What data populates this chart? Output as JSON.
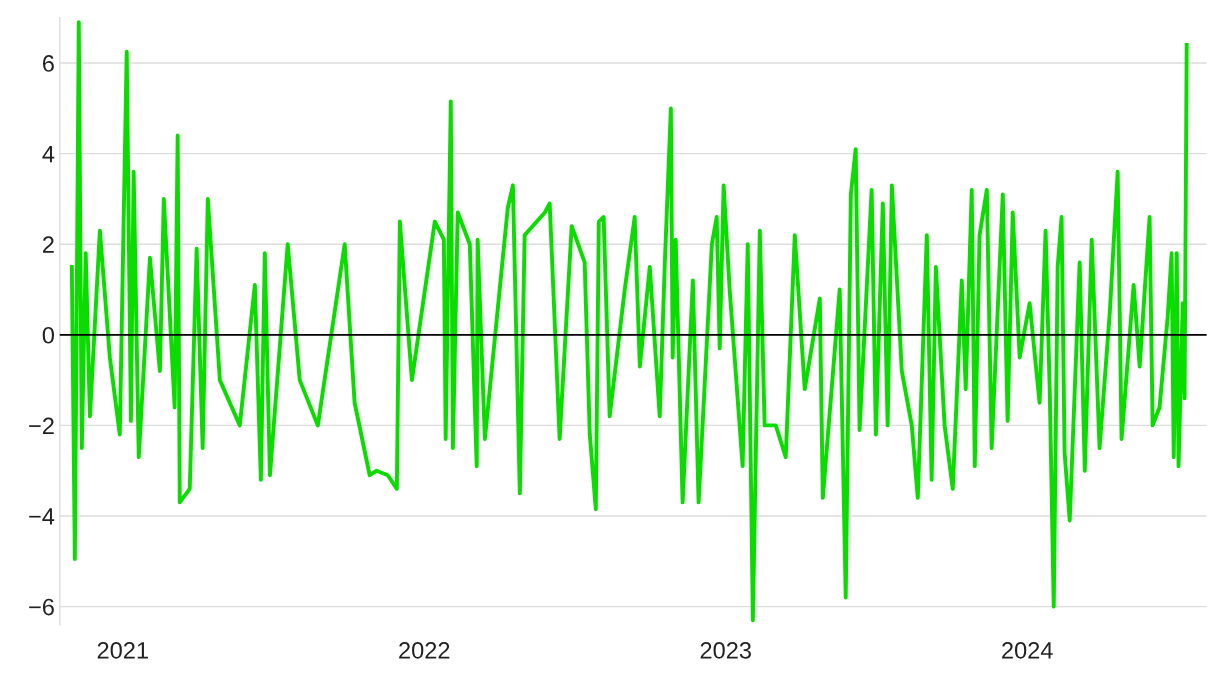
{
  "chart_data": {
    "type": "line",
    "x": [
      2020.831,
      2020.841,
      2020.854,
      2020.864,
      2020.877,
      2020.891,
      2020.924,
      2020.957,
      2020.99,
      2021.013,
      2021.027,
      2021.036,
      2021.053,
      2021.09,
      2021.123,
      2021.136,
      2021.172,
      2021.182,
      2021.189,
      2021.222,
      2021.245,
      2021.265,
      2021.282,
      2021.322,
      2021.388,
      2021.438,
      2021.458,
      2021.471,
      2021.488,
      2021.547,
      2021.587,
      2021.647,
      2021.736,
      2021.769,
      2021.819,
      2021.842,
      2021.879,
      2021.909,
      2021.919,
      2021.959,
      2022.035,
      2022.065,
      2022.071,
      2022.088,
      2022.095,
      2022.111,
      2022.151,
      2022.174,
      2022.177,
      2022.201,
      2022.277,
      2022.294,
      2022.317,
      2022.333,
      2022.4,
      2022.416,
      2022.449,
      2022.489,
      2022.532,
      2022.549,
      2022.569,
      2022.579,
      2022.595,
      2022.615,
      2022.665,
      2022.698,
      2022.715,
      2022.748,
      2022.781,
      2022.798,
      2022.818,
      2022.824,
      2022.834,
      2022.857,
      2022.891,
      2022.91,
      2022.954,
      2022.97,
      2022.98,
      2022.993,
      2023.013,
      2023.056,
      2023.073,
      2023.09,
      2023.113,
      2023.129,
      2023.166,
      2023.199,
      2023.229,
      2023.262,
      2023.312,
      2023.322,
      2023.378,
      2023.398,
      2023.415,
      2023.431,
      2023.444,
      2023.484,
      2023.498,
      2023.521,
      2023.537,
      2023.551,
      2023.584,
      2023.617,
      2023.637,
      2023.667,
      2023.683,
      2023.697,
      2023.726,
      2023.753,
      2023.783,
      2023.796,
      2023.816,
      2023.826,
      2023.842,
      2023.866,
      2023.882,
      2023.919,
      2023.935,
      2023.952,
      2023.975,
      2024.008,
      2024.041,
      2024.061,
      2024.075,
      2024.088,
      2024.101,
      2024.114,
      2024.124,
      2024.141,
      2024.174,
      2024.191,
      2024.214,
      2024.24,
      2024.274,
      2024.3,
      2024.313,
      2024.353,
      2024.373,
      2024.406,
      2024.416,
      2024.439,
      2024.466,
      2024.479,
      2024.486,
      2024.496,
      2024.502,
      2024.516,
      2024.522,
      2024.529
    ],
    "series": [
      {
        "color": "#0adc00",
        "values": [
          1.5,
          -4.95,
          6.9,
          -2.5,
          1.8,
          -1.8,
          2.3,
          -0.5,
          -2.2,
          6.25,
          -1.9,
          3.6,
          -2.7,
          1.7,
          -0.8,
          3.0,
          -1.6,
          4.4,
          -3.7,
          -3.4,
          1.9,
          -2.5,
          3.0,
          -1.0,
          -2.0,
          1.1,
          -3.2,
          1.8,
          -3.1,
          2.0,
          -1.0,
          -2.0,
          2.0,
          -1.5,
          -3.1,
          -3.0,
          -3.1,
          -3.4,
          2.5,
          -1.0,
          2.5,
          2.1,
          -2.3,
          5.15,
          -2.5,
          2.7,
          2.0,
          -2.9,
          2.1,
          -2.3,
          2.8,
          3.3,
          -3.5,
          2.2,
          2.7,
          2.9,
          -2.3,
          2.4,
          1.6,
          -2.2,
          -3.85,
          2.5,
          2.6,
          -1.8,
          1.0,
          2.6,
          -0.7,
          1.5,
          -1.8,
          1.6,
          5.0,
          -0.5,
          2.1,
          -3.7,
          1.2,
          -3.7,
          2.0,
          2.6,
          -0.3,
          3.3,
          1.0,
          -2.9,
          2.0,
          -6.3,
          2.3,
          -2.0,
          -2.0,
          -2.7,
          2.2,
          -1.2,
          0.8,
          -3.6,
          1.0,
          -5.8,
          3.1,
          4.1,
          -2.1,
          3.2,
          -2.2,
          2.9,
          -2.0,
          3.3,
          -0.8,
          -2.0,
          -3.6,
          2.2,
          -3.2,
          1.5,
          -2.0,
          -3.4,
          1.2,
          -1.2,
          3.2,
          -2.9,
          2.2,
          3.2,
          -2.5,
          3.1,
          -1.9,
          2.7,
          -0.5,
          0.7,
          -1.5,
          2.3,
          -1.3,
          -6.0,
          1.5,
          2.6,
          -2.6,
          -4.1,
          1.6,
          -3.0,
          2.1,
          -2.5,
          0.5,
          3.6,
          -2.3,
          1.1,
          -0.7,
          2.6,
          -2.0,
          -1.6,
          0.4,
          1.8,
          -2.7,
          1.8,
          -2.9,
          0.7,
          -1.4,
          6.4
        ]
      }
    ],
    "xlim": [
      2020.791,
      2024.595
    ],
    "xticks": [
      2021,
      2022,
      2023,
      2024
    ],
    "ylim": [
      -6.4,
      7.0
    ],
    "yticks": [
      {
        "value": -6,
        "label": "−6"
      },
      {
        "value": -4,
        "label": "−4"
      },
      {
        "value": -2,
        "label": "−2"
      },
      0,
      2,
      4,
      6
    ],
    "grid": "y",
    "ref_lines": [
      {
        "axis": "y",
        "value": 0,
        "color": "#000000"
      }
    ],
    "line_style": "solid",
    "legend": false
  }
}
